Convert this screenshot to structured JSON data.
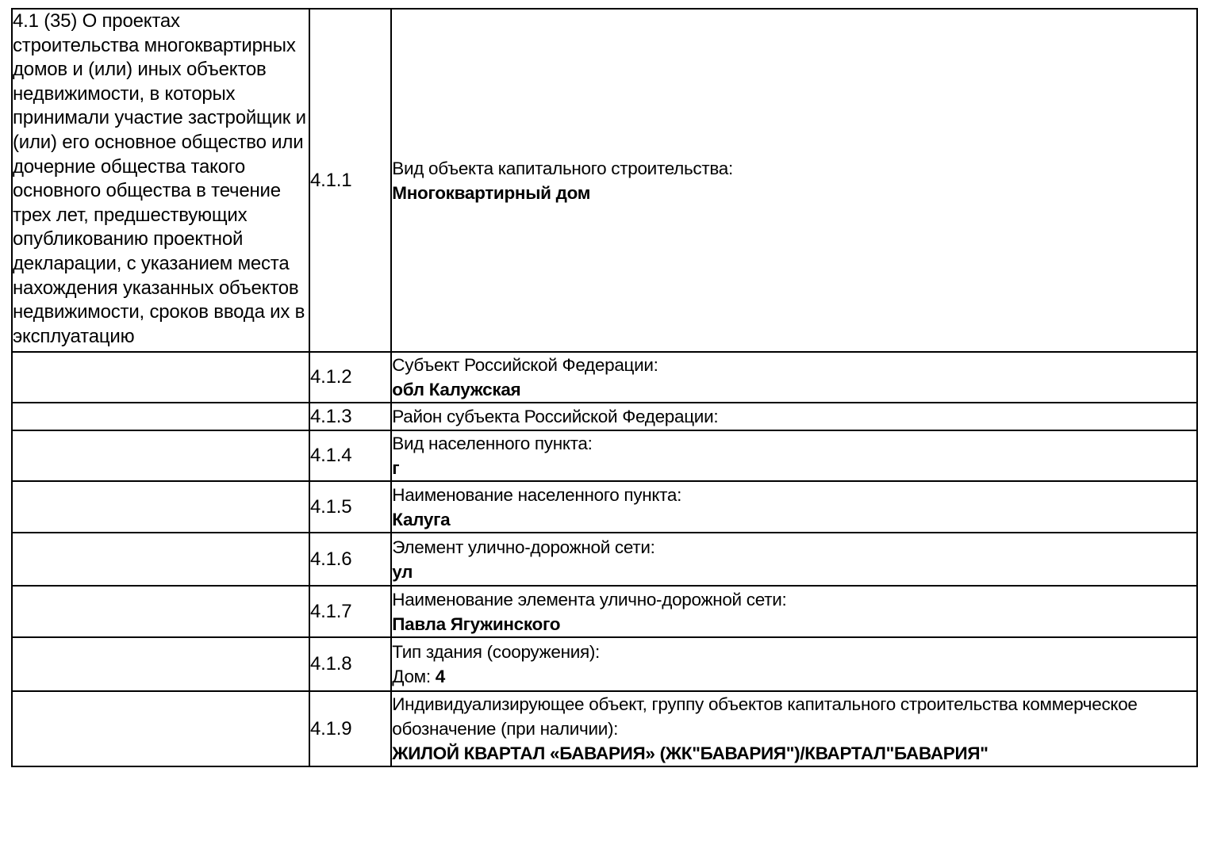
{
  "page": {
    "background_color": "#ffffff",
    "text_color": "#000000",
    "border_color": "#000000"
  },
  "table": {
    "section": {
      "description": "4.1 (35) О проектах строительства многоквартирных домов и (или) иных объектов недвижимости, в которых принимали участие застройщик и (или) его основное общество или дочерние общества такого основного общества в течение трех лет, предшествующих опубликованию проектной декларации, с указанием места нахождения указанных объектов недвижимости, сроков ввода их в эксплуатацию"
    },
    "rows": [
      {
        "num": "4.1.1",
        "label": "Вид объекта капитального строительства:",
        "value": "Многоквартирный дом"
      },
      {
        "num": "4.1.2",
        "label": "Субъект Российской Федерации:",
        "value": "обл Калужская"
      },
      {
        "num": "4.1.3",
        "label": "Район субъекта Российской Федерации:",
        "value": ""
      },
      {
        "num": "4.1.4",
        "label": "Вид населенного пункта:",
        "value": "г"
      },
      {
        "num": "4.1.5",
        "label": "Наименование населенного пункта:",
        "value": "Калуга"
      },
      {
        "num": "4.1.6",
        "label": "Элемент улично-дорожной сети:",
        "value": "ул"
      },
      {
        "num": "4.1.7",
        "label": "Наименование элемента улично-дорожной сети:",
        "value": "Павла Ягужинского"
      },
      {
        "num": "4.1.8",
        "label": "Тип здания (сооружения):",
        "value_prefix": "Дом: ",
        "value": "4"
      },
      {
        "num": "4.1.9",
        "label": "Индивидуализирующее объект, группу объектов капитального строительства коммерческое обозначение (при наличии):",
        "value": "ЖИЛОЙ КВАРТАЛ «БАВАРИЯ» (ЖК\"БАВАРИЯ\")/КВАРТАЛ\"БАВАРИЯ\""
      }
    ]
  }
}
